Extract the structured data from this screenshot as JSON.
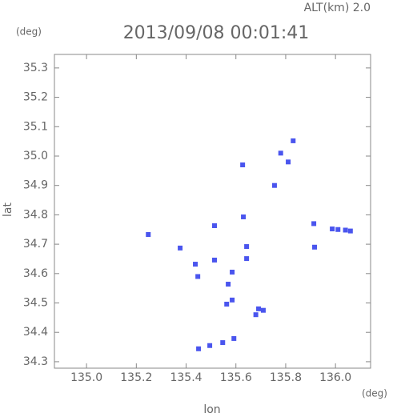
{
  "chart_data": {
    "type": "scatter",
    "title": "2013/09/08 00:01:41",
    "subtitle": "ALT(km) 2.0",
    "y_unit": "(deg)",
    "x_unit": "(deg)",
    "x_label": "lon",
    "y_label": "lat",
    "color": "#4a55ee",
    "xlim": [
      134.871,
      136.141
    ],
    "ylim": [
      34.278,
      35.346
    ],
    "xticks": [
      {
        "value": 135,
        "label": "135.0"
      },
      135.2,
      135.4,
      135.6,
      135.8,
      {
        "value": 136,
        "label": "136.0"
      }
    ],
    "yticks": [
      34.3,
      34.4,
      34.5,
      34.6,
      34.7,
      34.8,
      34.9,
      {
        "value": 35,
        "label": "35.0"
      },
      35.1,
      35.2,
      35.3
    ],
    "x": [
      135.83,
      135.78,
      135.81,
      135.755,
      135.627,
      135.913,
      135.987,
      136.01,
      136.04,
      136.06,
      135.916,
      135.248,
      135.376,
      135.514,
      135.437,
      135.447,
      135.514,
      135.585,
      135.569,
      135.585,
      135.563,
      135.643,
      135.643,
      135.691,
      135.68,
      135.71,
      135.45,
      135.495,
      135.547,
      135.592,
      135.63
    ],
    "values": [
      35.052,
      35.01,
      34.98,
      34.9,
      34.97,
      34.77,
      34.752,
      34.75,
      34.748,
      34.745,
      34.69,
      34.733,
      34.687,
      34.763,
      34.632,
      34.59,
      34.646,
      34.605,
      34.564,
      34.51,
      34.496,
      34.651,
      34.692,
      34.48,
      34.46,
      34.475,
      34.344,
      34.355,
      34.365,
      34.379,
      34.793
    ]
  }
}
